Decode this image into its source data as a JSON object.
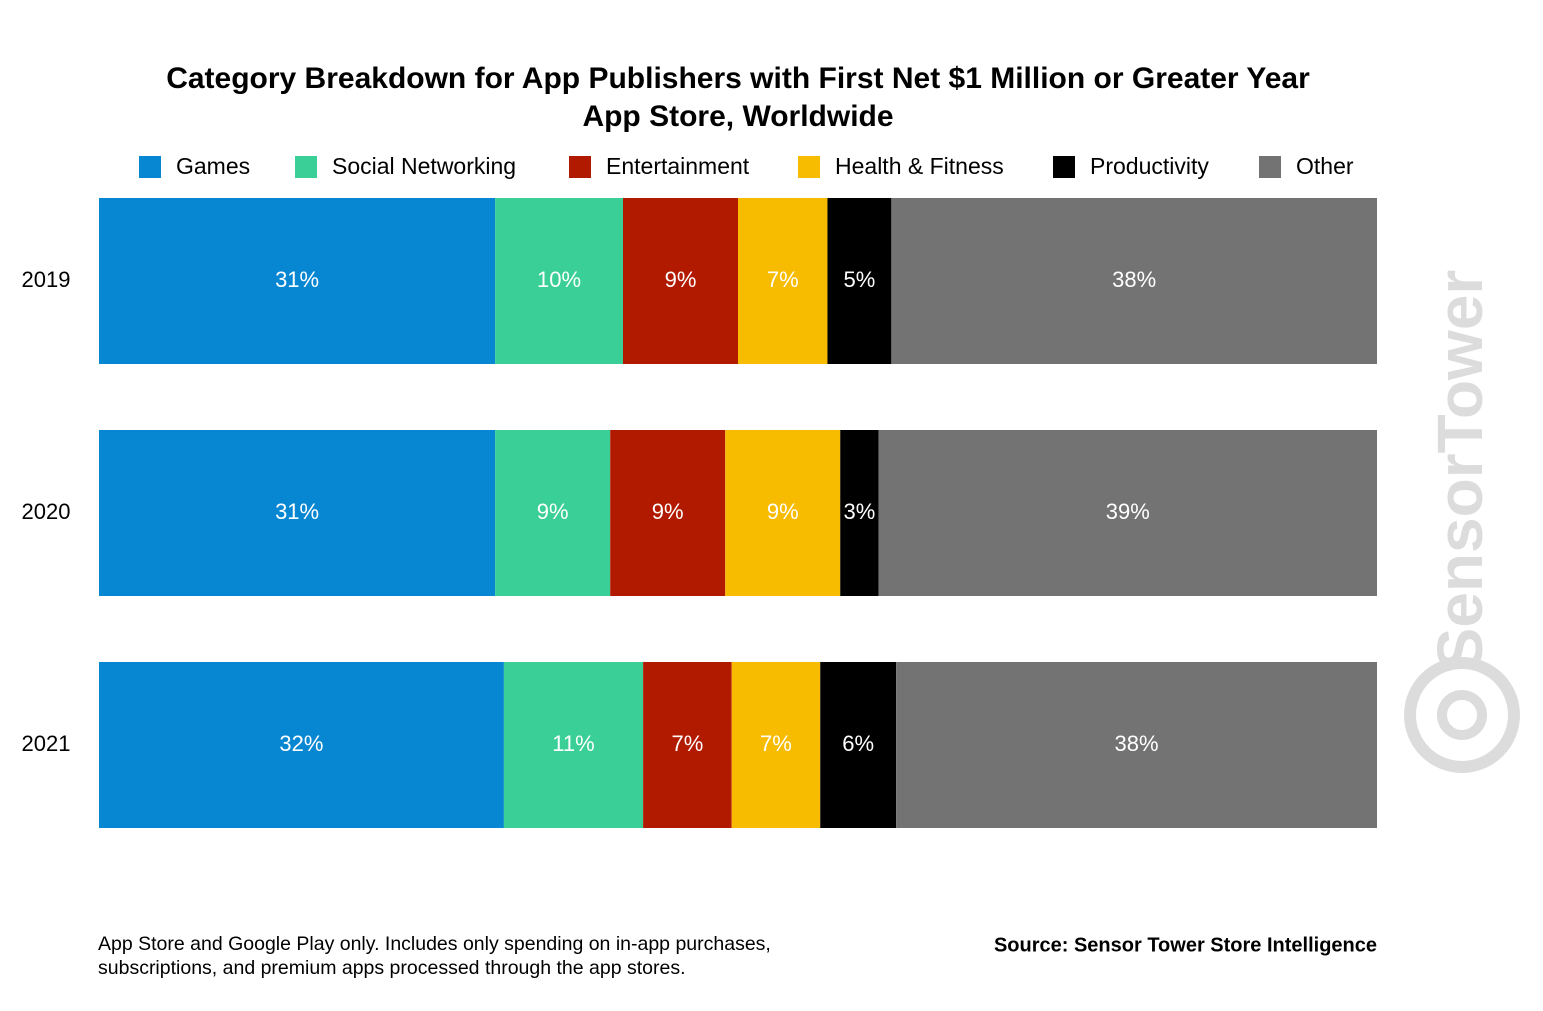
{
  "chart_data": {
    "type": "bar",
    "orientation": "horizontal",
    "stack": "percent",
    "title": "Category Breakdown for App Publishers with First Net $1 Million or Greater Year",
    "subtitle": "App Store, Worldwide",
    "categories": [
      "2019",
      "2020",
      "2021"
    ],
    "series": [
      {
        "name": "Games",
        "color": "#0787d2",
        "values": [
          31,
          31,
          32
        ],
        "value_labels": [
          "31%",
          "31%",
          "32%"
        ]
      },
      {
        "name": "Social Networking",
        "color": "#39cf96",
        "values": [
          10,
          9,
          11
        ],
        "value_labels": [
          "10%",
          "9%",
          "11%"
        ]
      },
      {
        "name": "Entertainment",
        "color": "#b21a00",
        "values": [
          9,
          9,
          7
        ],
        "value_labels": [
          "9%",
          "9%",
          "7%"
        ]
      },
      {
        "name": "Health & Fitness",
        "color": "#f7bb00",
        "values": [
          7,
          9,
          7
        ],
        "value_labels": [
          "7%",
          "9%",
          "7%"
        ]
      },
      {
        "name": "Productivity",
        "color": "#000000",
        "values": [
          5,
          3,
          6
        ],
        "value_labels": [
          "5%",
          "3%",
          "6%"
        ]
      },
      {
        "name": "Other",
        "color": "#737373",
        "values": [
          38,
          39,
          38
        ],
        "value_labels": [
          "38%",
          "39%",
          "38%"
        ]
      }
    ],
    "legend": "top",
    "notes": [
      "App Store and Google Play only. Includes only spending on in-app purchases,",
      "subscriptions, and premium apps processed through the app stores."
    ],
    "source": "Source: Sensor Tower Store Intelligence",
    "watermark": "SensorTower"
  }
}
